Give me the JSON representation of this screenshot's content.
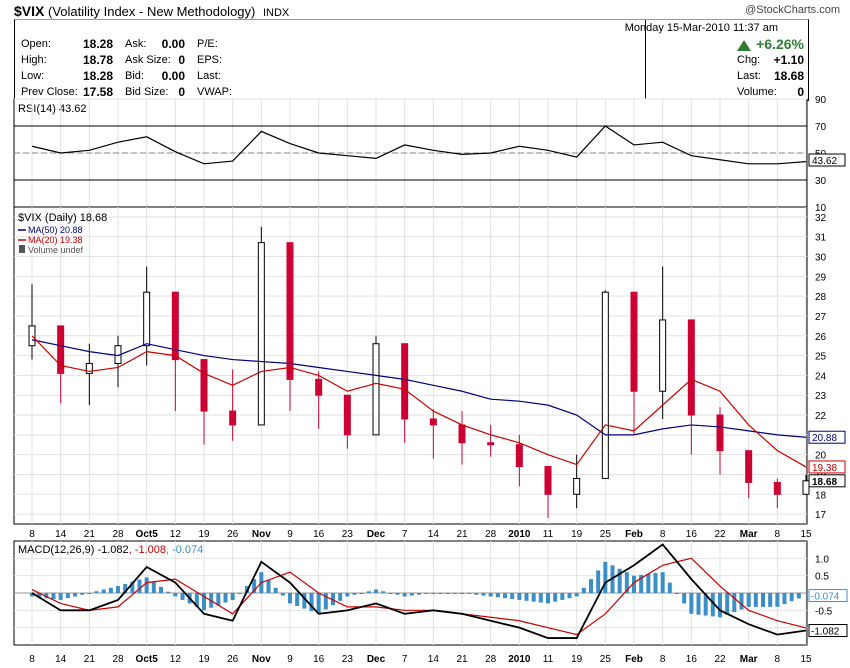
{
  "header": {
    "symbol": "$VIX",
    "name": "(Volatility Index - New Methodology)",
    "exchange": "INDX",
    "watermark": "@StockCharts.com",
    "date": "Monday  15-Mar-2010  11:37 am"
  },
  "quote": {
    "open": {
      "label": "Open:",
      "value": "18.28"
    },
    "high": {
      "label": "High:",
      "value": "18.78"
    },
    "low": {
      "label": "Low:",
      "value": "18.28"
    },
    "prev_close": {
      "label": "Prev Close:",
      "value": "17.58"
    },
    "ask": {
      "label": "Ask:",
      "value": "0.00"
    },
    "ask_size": {
      "label": "Ask Size:",
      "value": "0"
    },
    "bid": {
      "label": "Bid:",
      "value": "0.00"
    },
    "bid_size": {
      "label": "Bid Size:",
      "value": "0"
    },
    "pe": {
      "label": "P/E:"
    },
    "eps": {
      "label": "EPS:"
    },
    "last_mid": {
      "label": "Last:"
    },
    "vwap": {
      "label": "VWAP:"
    },
    "pct_change": "+6.26%",
    "chg": {
      "label": "Chg:",
      "value": "+1.10"
    },
    "last": {
      "label": "Last:",
      "value": "18.68"
    },
    "volume": {
      "label": "Volume:",
      "value": "0"
    }
  },
  "colors": {
    "up": "#000000",
    "down": "#cc0033",
    "ma50": "#000080",
    "ma20": "#cc0000",
    "macd_hist": "#3b8fc8",
    "signal": "#cc0000",
    "gain": "#2e7d32"
  },
  "chart_data": [
    {
      "type": "line",
      "title": "RSI(14) 43.62",
      "x": [
        "Sep 8",
        "Sep 14",
        "Sep 21",
        "Sep 28",
        "Oct 5",
        "Oct 12",
        "Oct 19",
        "Oct 26",
        "Nov 2",
        "Nov 9",
        "Nov 16",
        "Nov 23",
        "Nov 30",
        "Dec 7",
        "Dec 14",
        "Dec 21",
        "Dec 28",
        "Jan 4",
        "Jan 11",
        "Jan 19",
        "Jan 25",
        "Feb 1",
        "Feb 8",
        "Feb 16",
        "Feb 22",
        "Mar 1",
        "Mar 8",
        "Mar 15"
      ],
      "values": [
        55,
        50,
        52,
        58,
        62,
        51,
        42,
        44,
        66,
        57,
        50,
        48,
        46,
        56,
        52,
        49,
        50,
        55,
        52,
        47,
        70,
        56,
        58,
        48,
        45,
        42,
        42,
        43.62
      ],
      "ylim": [
        10,
        90
      ],
      "ticks": [
        "90",
        "70",
        "50",
        "30",
        "10"
      ],
      "reference_lines": [
        70,
        30
      ],
      "last_label": "43.62"
    },
    {
      "type": "candlestick",
      "title": "$VIX (Daily) 18.68",
      "legend": [
        {
          "name": "MA(50) 20.88",
          "color": "#000080"
        },
        {
          "name": "MA(20) 19.38",
          "color": "#cc0000"
        },
        {
          "name": "Volume undef",
          "color": "#555555"
        }
      ],
      "x": [
        "Sep 8",
        "Sep 14",
        "Sep 21",
        "Sep 28",
        "Oct 5",
        "Oct 12",
        "Oct 19",
        "Oct 26",
        "Nov 2",
        "Nov 9",
        "Nov 16",
        "Nov 23",
        "Nov 30",
        "Dec 7",
        "Dec 14",
        "Dec 21",
        "Dec 28",
        "Jan 4",
        "Jan 11",
        "Jan 19",
        "Jan 25",
        "Feb 1",
        "Feb 8",
        "Feb 16",
        "Feb 22",
        "Mar 1",
        "Mar 8",
        "Mar 15"
      ],
      "close": [
        26.5,
        24.1,
        24.6,
        25.5,
        28.2,
        24.8,
        22.2,
        21.5,
        30.7,
        23.8,
        23.0,
        21.0,
        25.6,
        21.8,
        21.5,
        20.6,
        20.5,
        19.4,
        18.0,
        18.8,
        28.2,
        23.2,
        26.8,
        22.0,
        20.2,
        18.6,
        18.0,
        18.68
      ],
      "high": [
        28.6,
        25.3,
        25.6,
        26.0,
        29.5,
        26.5,
        23.5,
        24.3,
        31.5,
        25.5,
        24.2,
        22.9,
        26.0,
        24.0,
        22.3,
        22.2,
        21.5,
        21.0,
        18.7,
        20.0,
        28.3,
        24.5,
        29.5,
        23.8,
        22.4,
        19.4,
        18.8,
        19.0
      ],
      "low": [
        24.8,
        22.6,
        22.5,
        23.4,
        24.5,
        22.2,
        20.5,
        20.7,
        23.2,
        22.2,
        21.3,
        20.3,
        21.3,
        20.6,
        19.8,
        19.5,
        19.9,
        18.4,
        16.8,
        17.3,
        19.0,
        21.0,
        21.8,
        20.0,
        19.0,
        17.8,
        17.3,
        18.28
      ],
      "ma50": [
        25.8,
        25.5,
        25.2,
        25.0,
        25.6,
        25.3,
        25.0,
        24.8,
        24.7,
        24.6,
        24.4,
        24.2,
        24.0,
        23.8,
        23.5,
        23.2,
        22.8,
        22.7,
        22.5,
        22.0,
        21.0,
        21.0,
        21.3,
        21.5,
        21.4,
        21.2,
        21.0,
        20.88
      ],
      "ma20": [
        26.0,
        24.5,
        24.2,
        24.4,
        25.2,
        25.0,
        24.1,
        23.5,
        24.2,
        24.4,
        24.0,
        23.2,
        23.6,
        23.3,
        22.2,
        21.5,
        21.0,
        20.6,
        20.0,
        19.5,
        21.5,
        21.2,
        22.5,
        23.8,
        23.2,
        21.5,
        20.2,
        19.38
      ],
      "ylim": [
        16.5,
        32.5
      ],
      "ticks": [
        "32",
        "31",
        "30",
        "29",
        "28",
        "27",
        "26",
        "25",
        "24",
        "23",
        "22",
        "21",
        "20",
        "19",
        "18",
        "17"
      ],
      "last_labels": [
        "20.88",
        "19.38",
        "18.68"
      ]
    },
    {
      "type": "bar-line",
      "title": "MACD(12,26,9) -1.082",
      "signal_label": ", -1.008",
      "hist_label": ", -0.074",
      "x": [
        "Sep 8",
        "Sep 14",
        "Sep 21",
        "Sep 28",
        "Oct 5",
        "Oct 12",
        "Oct 19",
        "Oct 26",
        "Nov 2",
        "Nov 9",
        "Nov 16",
        "Nov 23",
        "Nov 30",
        "Dec 7",
        "Dec 14",
        "Dec 21",
        "Dec 28",
        "Jan 4",
        "Jan 11",
        "Jan 19",
        "Jan 25",
        "Feb 1",
        "Feb 8",
        "Feb 16",
        "Feb 22",
        "Mar 1",
        "Mar 8",
        "Mar 15"
      ],
      "macd": [
        0.0,
        -0.5,
        -0.5,
        -0.2,
        0.75,
        0.3,
        -0.6,
        -0.8,
        0.9,
        0.3,
        -0.6,
        -0.5,
        -0.3,
        -0.6,
        -0.5,
        -0.6,
        -0.8,
        -1.0,
        -1.3,
        -1.3,
        0.3,
        0.8,
        1.4,
        0.4,
        -0.5,
        -0.9,
        -1.2,
        -1.082
      ],
      "signal": [
        0.1,
        -0.3,
        -0.5,
        -0.4,
        0.3,
        0.4,
        -0.1,
        -0.6,
        0.3,
        0.6,
        0.0,
        -0.4,
        -0.4,
        -0.5,
        -0.5,
        -0.6,
        -0.7,
        -0.8,
        -1.0,
        -1.2,
        -0.6,
        0.3,
        0.8,
        1.0,
        0.2,
        -0.5,
        -0.8,
        -1.008
      ],
      "ylim": [
        -1.5,
        1.5
      ],
      "ticks": [
        "1.0",
        "0.5",
        "-0.5",
        "-1.0"
      ],
      "last_labels": [
        "-0.074",
        "-1.082"
      ]
    }
  ],
  "x_axis_labels": [
    "8",
    "14",
    "21",
    "28",
    "Oct5",
    "12",
    "19",
    "26",
    "Nov",
    "9",
    "16",
    "23",
    "Dec",
    "7",
    "14",
    "21",
    "28",
    "2010",
    "11",
    "19",
    "25",
    "Feb",
    "8",
    "16",
    "22",
    "Mar",
    "8",
    "15"
  ]
}
